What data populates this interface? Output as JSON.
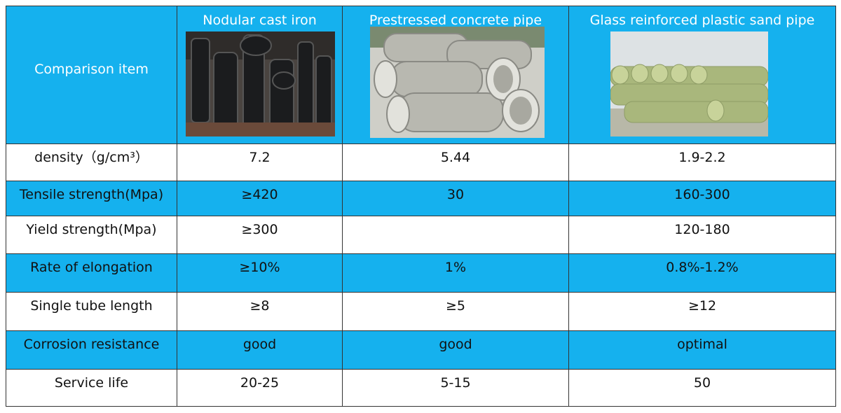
{
  "table": {
    "headers": [
      "Comparison item",
      "Nodular cast iron",
      "Prestressed concrete pipe",
      "Glass reinforced plastic sand pipe"
    ],
    "rows": [
      [
        "density（g/cm³）",
        "7.2",
        "5.44",
        "1.9-2.2"
      ],
      [
        "Tensile strength(Mpa)",
        "≥420",
        "30",
        "160-300"
      ],
      [
        "Yield strength(Mpa)",
        "≥300",
        null,
        "120-180"
      ],
      [
        "Rate of elongation",
        "≥10%",
        "1%",
        "0.8%-1.2%"
      ],
      [
        "Single tube length",
        "≥8",
        "≥5",
        "≥12"
      ],
      [
        "Corrosion resistance",
        "good",
        "good",
        "optimal"
      ],
      [
        "Service life",
        "20-25",
        "5-15",
        "50"
      ]
    ]
  }
}
